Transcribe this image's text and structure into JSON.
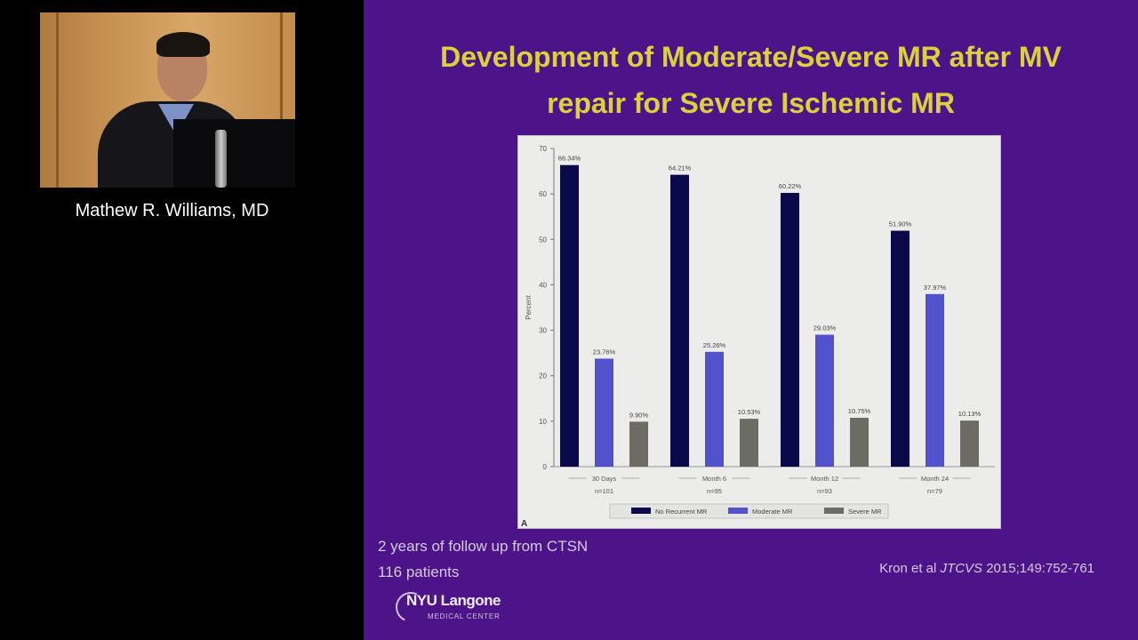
{
  "speaker": {
    "name": "Mathew R. Williams, MD"
  },
  "slide": {
    "title_line1": "Development of Moderate/Severe MR after MV",
    "title_line2": "repair for Severe Ischemic MR",
    "footnote_line1": "2 years of follow up from CTSN",
    "footnote_line2": "116 patients",
    "citation_author": "Kron et al",
    "citation_journal": "JTCVS",
    "citation_ref": "2015;149:752-761",
    "logo_main": "NYU Langone",
    "logo_sub": "MEDICAL CENTER",
    "colors": {
      "background": "#4d1388",
      "title": "#d9d23a",
      "text": "#d4cbe0"
    }
  },
  "chart_data": {
    "type": "bar",
    "categories": [
      "30 Days",
      "Month 6",
      "Month 12",
      "Month 24"
    ],
    "category_counts": [
      "n=101",
      "n=95",
      "n=93",
      "n=79"
    ],
    "series": [
      {
        "name": "No Recurrent MR",
        "color": "#0a0a4a",
        "values": [
          66.34,
          64.21,
          60.22,
          51.9
        ],
        "labels": [
          "66.34%",
          "64.21%",
          "60.22%",
          "51.90%"
        ]
      },
      {
        "name": "Moderate MR",
        "color": "#5252cc",
        "values": [
          23.76,
          25.26,
          29.03,
          37.97
        ],
        "labels": [
          "23.76%",
          "25.26%",
          "29.03%",
          "37.97%"
        ]
      },
      {
        "name": "Severe MR",
        "color": "#6c6c64",
        "values": [
          9.9,
          10.53,
          10.75,
          10.13
        ],
        "labels": [
          "9.90%",
          "10.53%",
          "10.75%",
          "10.13%"
        ]
      }
    ],
    "ylabel": "Percent",
    "yticks": [
      "0",
      "10",
      "20",
      "30",
      "40",
      "50",
      "60",
      "70"
    ],
    "ylim": [
      0,
      70
    ],
    "panel_label": "A",
    "grid": false,
    "legend_position": "bottom"
  }
}
